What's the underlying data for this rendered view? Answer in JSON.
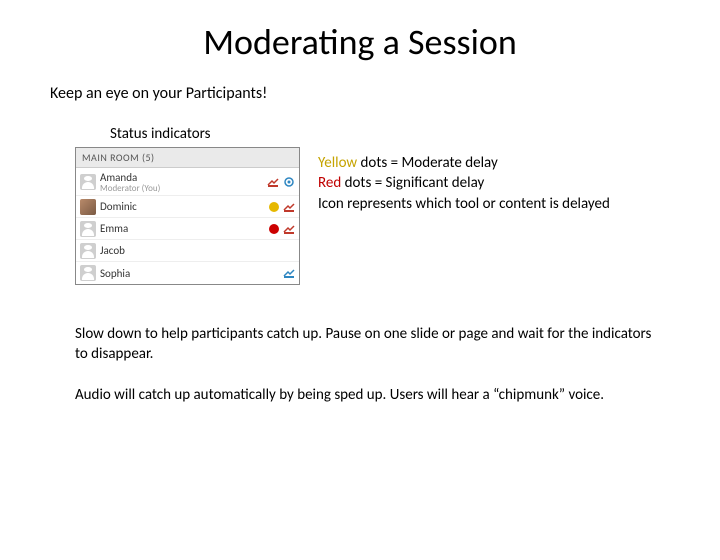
{
  "title": "Moderating a Session",
  "subtitle": "Keep an eye on your Participants!",
  "status_label": "Status indicators",
  "panel": {
    "header": "MAIN ROOM (5)",
    "rows": [
      {
        "name": "Amanda",
        "sub": "Moderator (You)",
        "avatar": "silhouette",
        "dot_color": null,
        "icon_color": "#c0392b",
        "icon2_color": "#2e86c1"
      },
      {
        "name": "Dominic",
        "sub": "",
        "avatar": "photo",
        "dot_color": "#e6b800",
        "icon_color": "#c0392b",
        "icon2_color": null
      },
      {
        "name": "Emma",
        "sub": "",
        "avatar": "silhouette",
        "dot_color": "#cc0000",
        "icon_color": "#c0392b",
        "icon2_color": null
      },
      {
        "name": "Jacob",
        "sub": "",
        "avatar": "silhouette",
        "dot_color": null,
        "icon_color": null,
        "icon2_color": null
      },
      {
        "name": "Sophia",
        "sub": "",
        "avatar": "silhouette",
        "dot_color": null,
        "icon_color": "#2e86c1",
        "icon2_color": null
      }
    ]
  },
  "legend": {
    "yellow_word": "Yellow",
    "yellow_rest": " dots = Moderate delay",
    "red_word": "Red",
    "red_rest": " dots = Significant delay",
    "icon_line": "Icon represents which tool or content is delayed"
  },
  "para1": "Slow down to help participants catch up.  Pause on one slide or page and wait for the indicators to disappear.",
  "para2": "Audio will catch up automatically by being sped up.  Users will hear a “chipmunk” voice.",
  "colors": {
    "yellow_text": "#c5a300",
    "red_text": "#c00000"
  }
}
